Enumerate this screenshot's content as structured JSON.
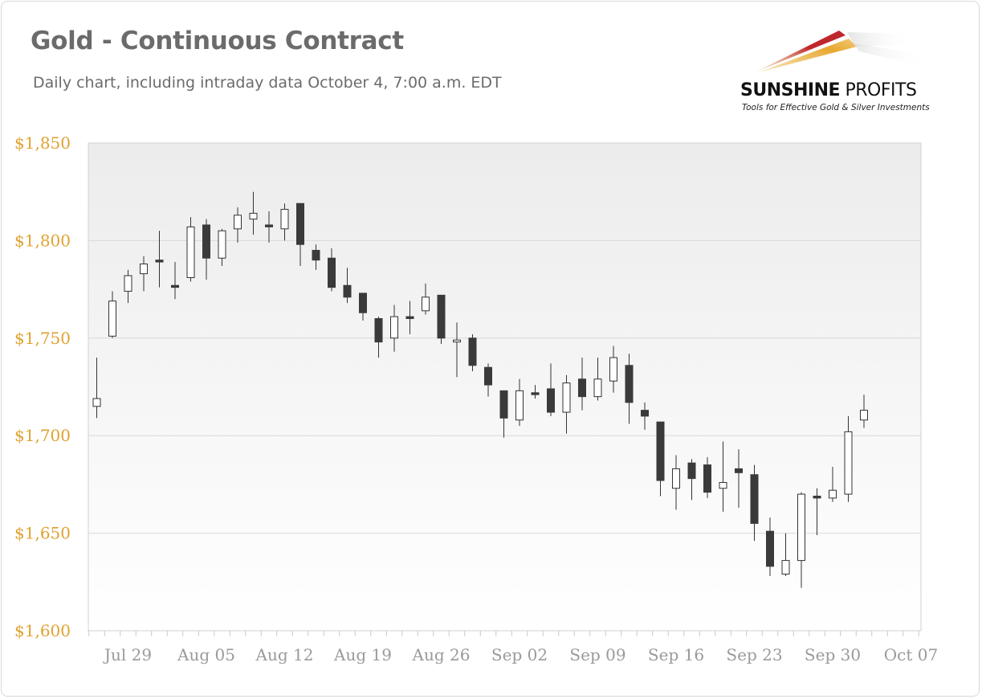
{
  "header": {
    "title": "Gold - Continuous Contract",
    "subtitle": "Daily chart, including intraday data October 4, 7:00 a.m. EDT"
  },
  "logo": {
    "name_bold": "SUNSHINE",
    "name_light": " PROFITS",
    "tagline": "Tools for Effective Gold & Silver Investments"
  },
  "colors": {
    "ytick": "#e0a230",
    "xtick": "#9a9a9a",
    "bear_candle": "#3a3a3a",
    "bull_candle": "#ffffff",
    "gridline": "#d9d9d9"
  },
  "chart_data": {
    "type": "candlestick",
    "title": "Gold - Continuous Contract",
    "ylim": [
      1600,
      1850
    ],
    "yticks": [
      1850,
      1800,
      1750,
      1700,
      1650,
      1600
    ],
    "ytick_labels": [
      "$1,850",
      "$1,800",
      "$1,750",
      "$1,700",
      "$1,650",
      "$1,600"
    ],
    "xticks": [
      {
        "label": "Jul 29",
        "day": 2
      },
      {
        "label": "Aug 05",
        "day": 7
      },
      {
        "label": "Aug 12",
        "day": 12
      },
      {
        "label": "Aug 19",
        "day": 17
      },
      {
        "label": "Aug 26",
        "day": 22
      },
      {
        "label": "Sep 02",
        "day": 27
      },
      {
        "label": "Sep 09",
        "day": 32
      },
      {
        "label": "Sep 16",
        "day": 37
      },
      {
        "label": "Sep 23",
        "day": 42
      },
      {
        "label": "Sep 30",
        "day": 47
      },
      {
        "label": "Oct 07",
        "day": 52
      }
    ],
    "grid": true,
    "legend": "none",
    "candles": [
      {
        "date": "Jul 26",
        "open": 1715,
        "high": 1740,
        "low": 1709,
        "close": 1719
      },
      {
        "date": "Jul 27",
        "open": 1751,
        "high": 1774,
        "low": 1750,
        "close": 1769
      },
      {
        "date": "Jul 28",
        "open": 1774,
        "high": 1785,
        "low": 1768,
        "close": 1782
      },
      {
        "date": "Jul 29",
        "open": 1783,
        "high": 1792,
        "low": 1774,
        "close": 1788
      },
      {
        "date": "Jul 30",
        "open": 1790,
        "high": 1805,
        "low": 1776,
        "close": 1789
      },
      {
        "date": "Aug 02",
        "open": 1777,
        "high": 1789,
        "low": 1770,
        "close": 1776
      },
      {
        "date": "Aug 03",
        "open": 1781,
        "high": 1812,
        "low": 1779,
        "close": 1807
      },
      {
        "date": "Aug 04",
        "open": 1808,
        "high": 1811,
        "low": 1780,
        "close": 1791
      },
      {
        "date": "Aug 05",
        "open": 1791,
        "high": 1806,
        "low": 1787,
        "close": 1805
      },
      {
        "date": "Aug 06",
        "open": 1806,
        "high": 1817,
        "low": 1799,
        "close": 1813
      },
      {
        "date": "Aug 09",
        "open": 1811,
        "high": 1825,
        "low": 1803,
        "close": 1814
      },
      {
        "date": "Aug 10",
        "open": 1808,
        "high": 1815,
        "low": 1799,
        "close": 1807
      },
      {
        "date": "Aug 11",
        "open": 1806,
        "high": 1819,
        "low": 1800,
        "close": 1816
      },
      {
        "date": "Aug 12",
        "open": 1819,
        "high": 1819,
        "low": 1787,
        "close": 1798
      },
      {
        "date": "Aug 13",
        "open": 1795,
        "high": 1798,
        "low": 1785,
        "close": 1790
      },
      {
        "date": "Aug 16",
        "open": 1791,
        "high": 1796,
        "low": 1774,
        "close": 1776
      },
      {
        "date": "Aug 17",
        "open": 1777,
        "high": 1786,
        "low": 1768,
        "close": 1771
      },
      {
        "date": "Aug 18",
        "open": 1773,
        "high": 1773,
        "low": 1759,
        "close": 1763
      },
      {
        "date": "Aug 19",
        "open": 1760,
        "high": 1761,
        "low": 1740,
        "close": 1748
      },
      {
        "date": "Aug 20",
        "open": 1750,
        "high": 1767,
        "low": 1743,
        "close": 1761
      },
      {
        "date": "Aug 23",
        "open": 1761,
        "high": 1769,
        "low": 1752,
        "close": 1760
      },
      {
        "date": "Aug 24",
        "open": 1764,
        "high": 1778,
        "low": 1762,
        "close": 1771
      },
      {
        "date": "Aug 25",
        "open": 1772,
        "high": 1772,
        "low": 1747,
        "close": 1750
      },
      {
        "date": "Aug 26",
        "open": 1748,
        "high": 1758,
        "low": 1730,
        "close": 1749
      },
      {
        "date": "Aug 27",
        "open": 1750,
        "high": 1752,
        "low": 1733,
        "close": 1736
      },
      {
        "date": "Aug 30",
        "open": 1735,
        "high": 1737,
        "low": 1720,
        "close": 1726
      },
      {
        "date": "Aug 31",
        "open": 1723,
        "high": 1723,
        "low": 1699,
        "close": 1709
      },
      {
        "date": "Sep 01",
        "open": 1708,
        "high": 1729,
        "low": 1705,
        "close": 1723
      },
      {
        "date": "Sep 02",
        "open": 1722,
        "high": 1726,
        "low": 1719,
        "close": 1721
      },
      {
        "date": "Sep 03",
        "open": 1724,
        "high": 1737,
        "low": 1710,
        "close": 1712
      },
      {
        "date": "Sep 06",
        "open": 1712,
        "high": 1731,
        "low": 1701,
        "close": 1727
      },
      {
        "date": "Sep 07",
        "open": 1729,
        "high": 1740,
        "low": 1713,
        "close": 1720
      },
      {
        "date": "Sep 08",
        "open": 1720,
        "high": 1740,
        "low": 1718,
        "close": 1729
      },
      {
        "date": "Sep 09",
        "open": 1728,
        "high": 1746,
        "low": 1722,
        "close": 1740
      },
      {
        "date": "Sep 10",
        "open": 1736,
        "high": 1742,
        "low": 1706,
        "close": 1717
      },
      {
        "date": "Sep 13",
        "open": 1713,
        "high": 1717,
        "low": 1703,
        "close": 1710
      },
      {
        "date": "Sep 14",
        "open": 1707,
        "high": 1707,
        "low": 1669,
        "close": 1677
      },
      {
        "date": "Sep 15",
        "open": 1673,
        "high": 1690,
        "low": 1662,
        "close": 1683
      },
      {
        "date": "Sep 16",
        "open": 1686,
        "high": 1688,
        "low": 1667,
        "close": 1678
      },
      {
        "date": "Sep 17",
        "open": 1685,
        "high": 1689,
        "low": 1668,
        "close": 1671
      },
      {
        "date": "Sep 20",
        "open": 1673,
        "high": 1697,
        "low": 1661,
        "close": 1676
      },
      {
        "date": "Sep 21",
        "open": 1683,
        "high": 1693,
        "low": 1663,
        "close": 1681
      },
      {
        "date": "Sep 22",
        "open": 1680,
        "high": 1685,
        "low": 1646,
        "close": 1655
      },
      {
        "date": "Sep 23",
        "open": 1651,
        "high": 1658,
        "low": 1628,
        "close": 1633
      },
      {
        "date": "Sep 24",
        "open": 1629,
        "high": 1650,
        "low": 1628,
        "close": 1636
      },
      {
        "date": "Sep 27",
        "open": 1636,
        "high": 1671,
        "low": 1622,
        "close": 1670
      },
      {
        "date": "Sep 28",
        "open": 1669,
        "high": 1673,
        "low": 1649,
        "close": 1668
      },
      {
        "date": "Sep 29",
        "open": 1668,
        "high": 1684,
        "low": 1666,
        "close": 1672
      },
      {
        "date": "Sep 30",
        "open": 1670,
        "high": 1710,
        "low": 1666,
        "close": 1702
      },
      {
        "date": "Oct 01",
        "open": 1708,
        "high": 1721,
        "low": 1704,
        "close": 1713
      }
    ]
  }
}
